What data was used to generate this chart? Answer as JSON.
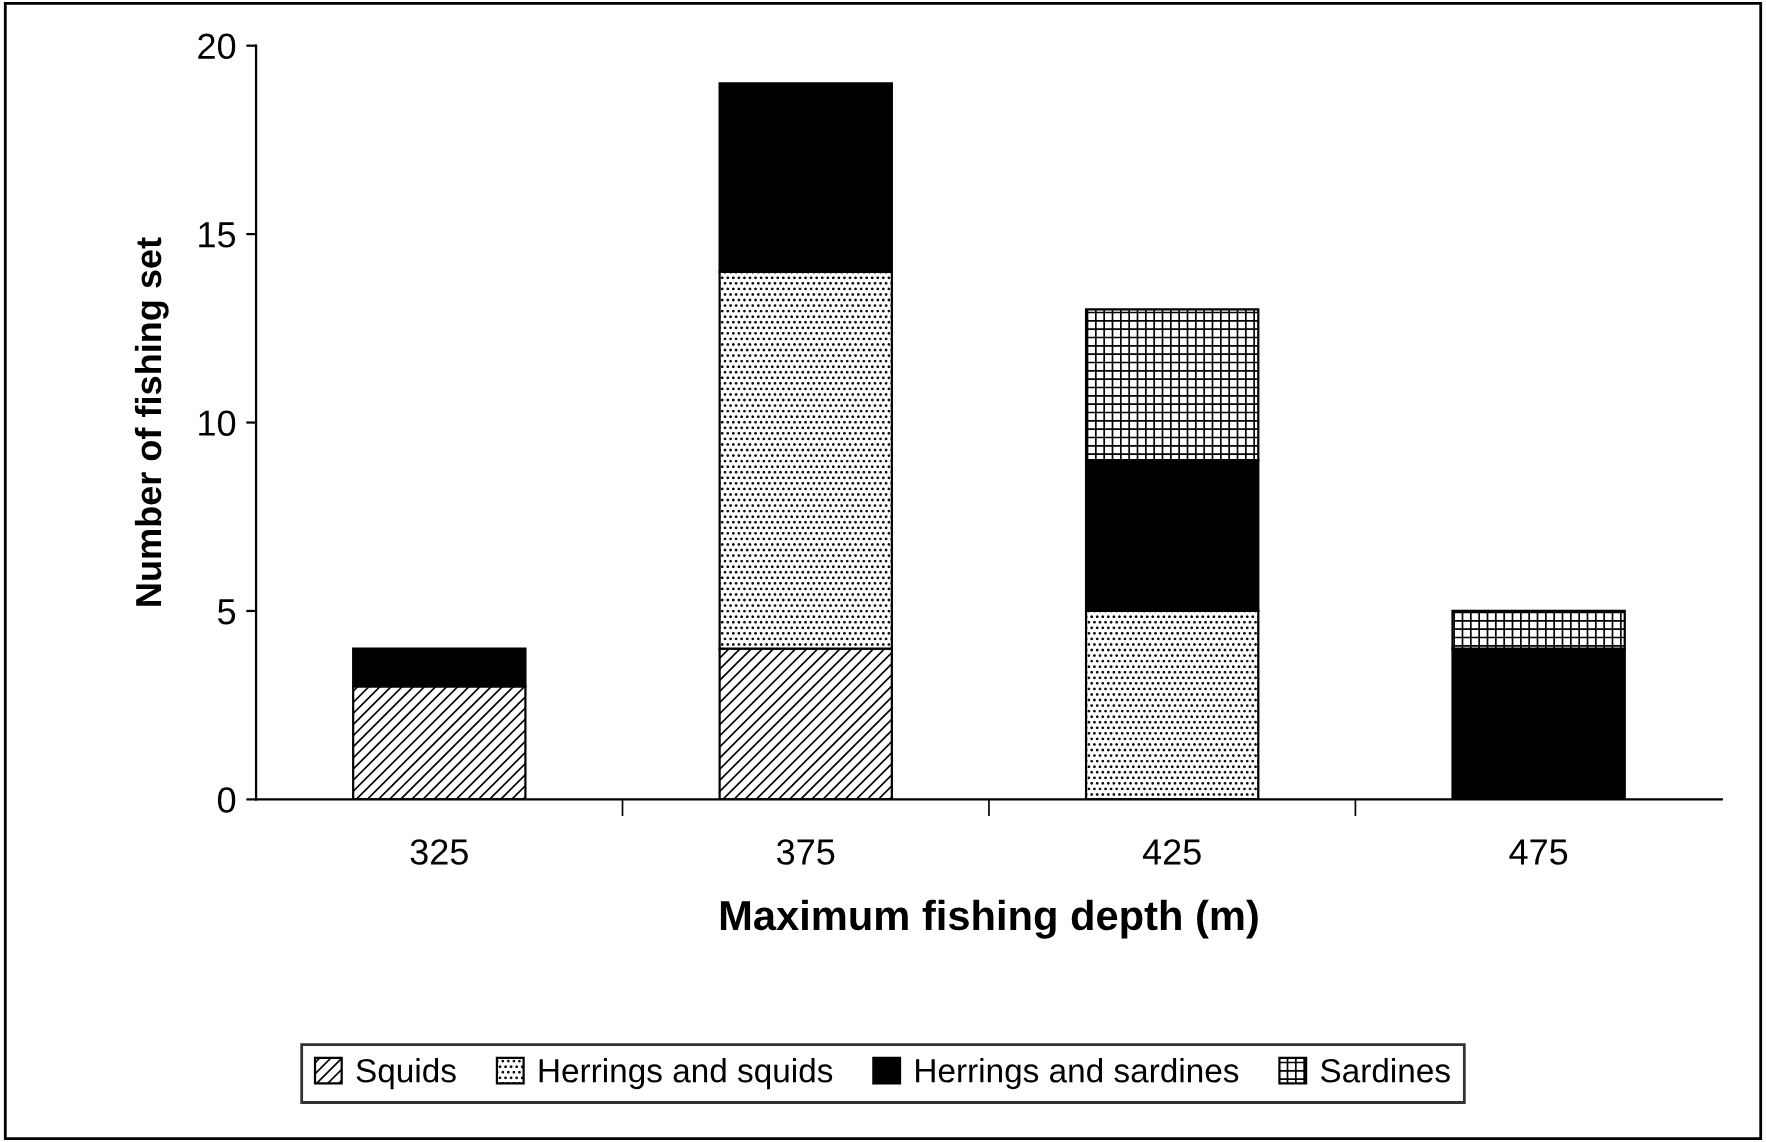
{
  "chart_data": {
    "type": "bar",
    "stacked": true,
    "xlabel": "Maximum fishing depth (m)",
    "ylabel": "Number of fishing set",
    "categories": [
      "325",
      "375",
      "425",
      "475"
    ],
    "series": [
      {
        "name": "Squids",
        "color": "#000000",
        "values": [
          3,
          4,
          0,
          0
        ]
      },
      {
        "name": "Herrings and squids",
        "color": "#000000",
        "values": [
          0,
          10,
          5,
          0
        ]
      },
      {
        "name": "Herrings and sardines",
        "color": "#000000",
        "values": [
          1,
          5,
          4,
          4
        ]
      },
      {
        "name": "Sardines",
        "color": "#000000",
        "values": [
          0,
          0,
          4,
          1
        ]
      }
    ],
    "ylim": [
      0,
      20
    ],
    "yticks": [
      0,
      5,
      10,
      15,
      20
    ],
    "grid": false,
    "legend": "bottom"
  }
}
